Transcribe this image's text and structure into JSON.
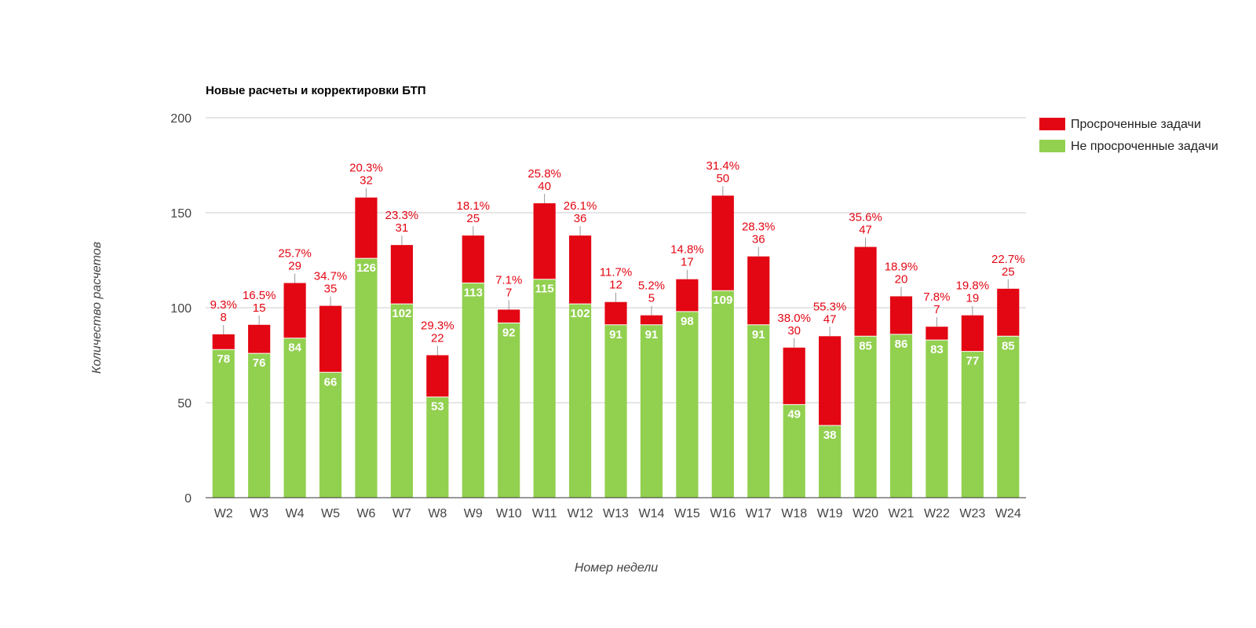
{
  "chart_data": {
    "type": "bar",
    "stacked": true,
    "title": "Новые расчеты и корректировки БТП",
    "xlabel": "Номер недели",
    "ylabel": "Количество расчетов",
    "ylim": [
      0,
      200
    ],
    "yticks": [
      "0",
      "50",
      "100",
      "150",
      "200"
    ],
    "grid": true,
    "legend_position": "right",
    "categories": [
      "W2",
      "W3",
      "W4",
      "W5",
      "W6",
      "W7",
      "W8",
      "W9",
      "W10",
      "W11",
      "W12",
      "W13",
      "W14",
      "W15",
      "W16",
      "W17",
      "W18",
      "W19",
      "W20",
      "W21",
      "W22",
      "W23",
      "W24"
    ],
    "series": [
      {
        "name": "Не просроченные задачи",
        "color": "#92d050",
        "values": [
          78,
          76,
          84,
          66,
          126,
          102,
          53,
          113,
          92,
          115,
          102,
          91,
          91,
          98,
          109,
          91,
          49,
          38,
          85,
          86,
          83,
          77,
          85
        ]
      },
      {
        "name": "Просроченные задачи",
        "color": "#e30613",
        "values": [
          8,
          15,
          29,
          35,
          32,
          31,
          22,
          25,
          7,
          40,
          36,
          12,
          5,
          17,
          50,
          36,
          30,
          47,
          47,
          20,
          7,
          19,
          25
        ]
      }
    ],
    "overdue_share_labels": [
      "9.3%",
      "16.5%",
      "25.7%",
      "34.7%",
      "20.3%",
      "23.3%",
      "29.3%",
      "18.1%",
      "7.1%",
      "25.8%",
      "26.1%",
      "11.7%",
      "5.2%",
      "14.8%",
      "31.4%",
      "28.3%",
      "38.0%",
      "55.3%",
      "35.6%",
      "18.9%",
      "7.8%",
      "19.8%",
      "22.7%"
    ]
  }
}
